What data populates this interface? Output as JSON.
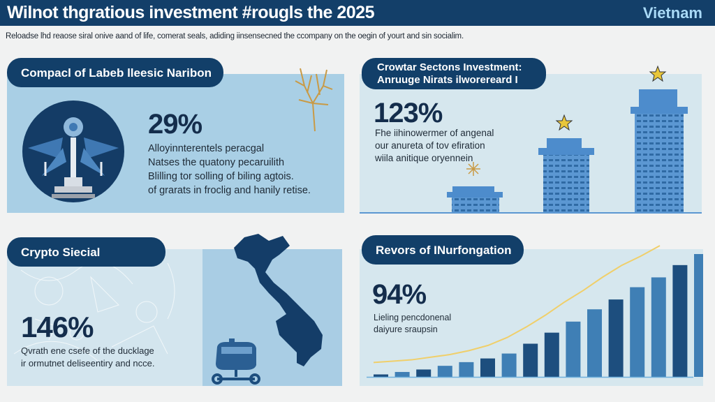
{
  "header": {
    "title": "Wilnot thgratious investment #rougls the 2025",
    "country": "Vietnam",
    "subtitle": "Reloadse lhd reaose siral onive aand of life, comerat seals, adiding iinsensecned the ccompany on the oegin of yourt and sin socialim."
  },
  "panels": [
    {
      "label": "Compacl of Labeb lleesic Naribon",
      "stat": "29%",
      "lines": [
        "Alloyinnterentels peracgal",
        "Natses the quatony pecaruilith",
        "Blilling tor solling of biling agtois.",
        "of grarats in froclig and hanily retise."
      ],
      "icons": [
        "monument-emblem-icon",
        "golden-tree-icon"
      ]
    },
    {
      "label_lines": [
        "Crowtar Sectons Investment:",
        "Anruuge  Nirats ilworereard I"
      ],
      "stat": "123%",
      "lines": [
        "Fhe iihinowermer of angenal",
        "our anureta of tov efiration",
        "wiila anitique oryennein"
      ],
      "icons": [
        "building-icon",
        "star-icon",
        "sparkle-icon"
      ]
    },
    {
      "label": "Crypto Siecial",
      "stat": "146%",
      "lines": [
        "Qvrath ene csefe of the ducklage",
        "ir ormutnet deliseentiry and ncce."
      ],
      "icons": [
        "vietnam-map-icon",
        "vehicle-icon"
      ]
    },
    {
      "label": "Revors of INurfongation",
      "stat": "94%",
      "lines": [
        "Lieling pencdonenal",
        "daiyure sraupsin"
      ]
    }
  ],
  "colors": {
    "navy": "#133f69",
    "accent": "#a9daf7",
    "bar_light": "#3f7fb5",
    "bar_dark": "#1d4e7e",
    "trend": "#f0cf6a"
  },
  "chart_data": {
    "type": "bar",
    "values": [
      2,
      4,
      6,
      9,
      12,
      15,
      19,
      27,
      36,
      45,
      55,
      63,
      73,
      81,
      91,
      100
    ],
    "trend_line": [
      11,
      12,
      13,
      15,
      17,
      20,
      24,
      30,
      38,
      47,
      57,
      66,
      76,
      85,
      92,
      100
    ],
    "grid": false
  }
}
